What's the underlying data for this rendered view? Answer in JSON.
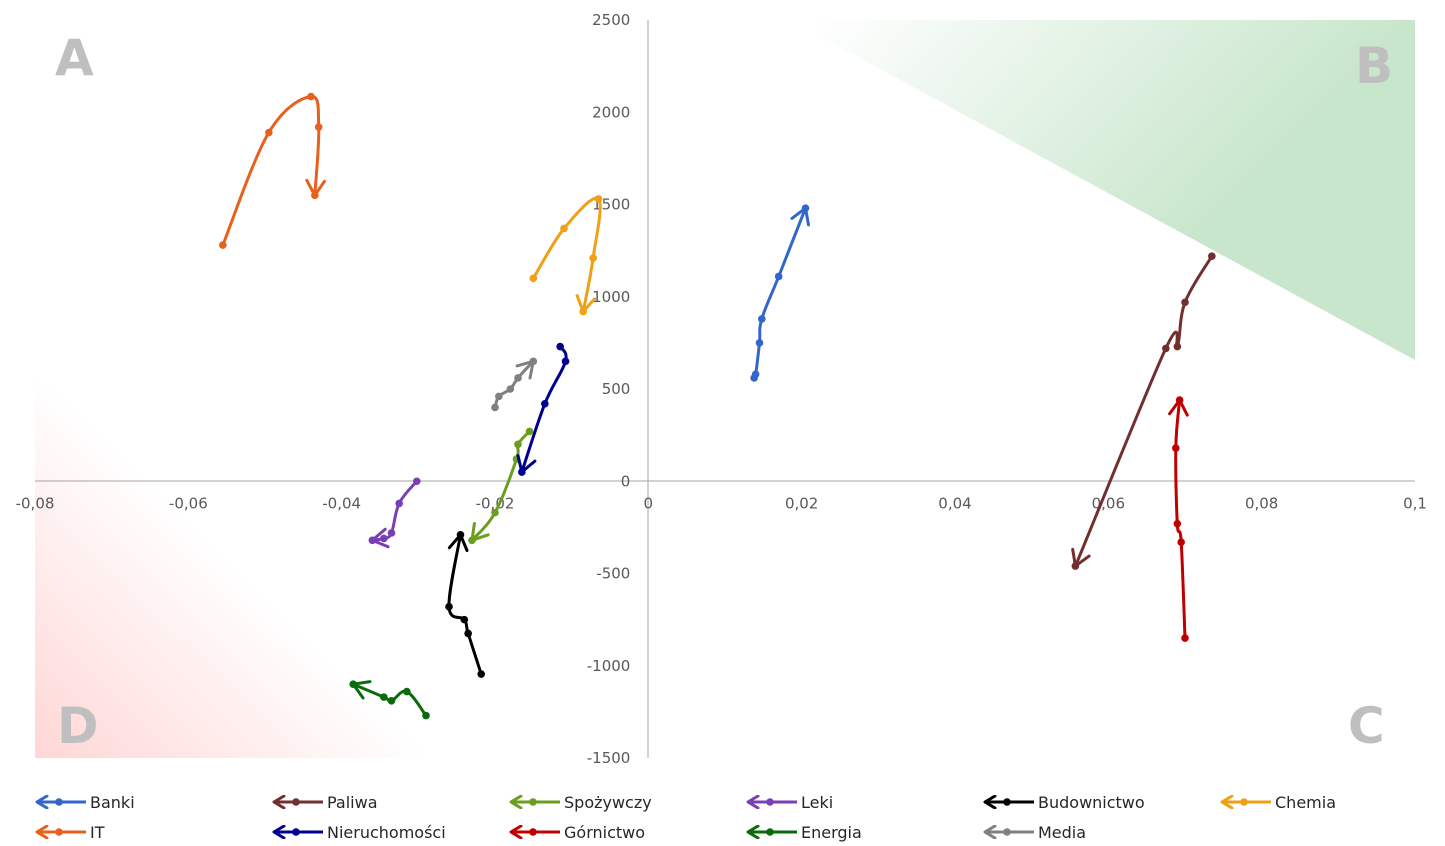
{
  "chart_data": {
    "type": "line",
    "xlim": [
      -0.08,
      0.1
    ],
    "ylim": [
      -1500,
      2500
    ],
    "x_ticks": [
      -0.08,
      -0.06,
      -0.04,
      -0.02,
      0,
      0.02,
      0.04,
      0.06,
      0.08,
      0.1
    ],
    "x_tick_labels": [
      "-0,08",
      "-0,06",
      "-0,04",
      "-0,02",
      "0",
      "0,02",
      "0,04",
      "0,06",
      "0,08",
      "0,1"
    ],
    "y_ticks": [
      -1500,
      -1000,
      -500,
      0,
      500,
      1000,
      1500,
      2000,
      2500
    ],
    "y_tick_labels": [
      "-1500",
      "-1000",
      "-500",
      "0",
      "500",
      "1000",
      "1500",
      "2000",
      "2500"
    ],
    "grid": false,
    "legend_position": "bottom",
    "quadrant_labels": {
      "A": "A",
      "B": "B",
      "C": "C",
      "D": "D"
    },
    "quadrant_shading": {
      "top_right": "#c8e6cc",
      "bottom_left": "#ffd9d9"
    },
    "series": [
      {
        "name": "Banki",
        "color": "#3366cc",
        "arrow": true,
        "points": [
          [
            0.0138,
            560
          ],
          [
            0.014,
            580
          ],
          [
            0.0145,
            750
          ],
          [
            0.0148,
            880
          ],
          [
            0.017,
            1110
          ],
          [
            0.0205,
            1480
          ]
        ]
      },
      {
        "name": "Paliwa",
        "color": "#722f2f",
        "arrow": true,
        "points": [
          [
            0.0735,
            1220
          ],
          [
            0.07,
            970
          ],
          [
            0.069,
            730
          ],
          [
            0.0675,
            720
          ],
          [
            0.0557,
            -460
          ]
        ]
      },
      {
        "name": "Spożywczy",
        "color": "#6b9e1f",
        "arrow": true,
        "points": [
          [
            -0.0155,
            270
          ],
          [
            -0.017,
            200
          ],
          [
            -0.0172,
            120
          ],
          [
            -0.02,
            -170
          ],
          [
            -0.023,
            -320
          ]
        ]
      },
      {
        "name": "Leki",
        "color": "#7b3fb5",
        "arrow": true,
        "points": [
          [
            -0.0302,
            0
          ],
          [
            -0.0325,
            -120
          ],
          [
            -0.0335,
            -280
          ],
          [
            -0.0345,
            -310
          ],
          [
            -0.036,
            -320
          ]
        ]
      },
      {
        "name": "Budownictwo",
        "color": "#000000",
        "arrow": true,
        "points": [
          [
            -0.0218,
            -1045
          ],
          [
            -0.0235,
            -825
          ],
          [
            -0.024,
            -750
          ],
          [
            -0.026,
            -680
          ],
          [
            -0.0245,
            -290
          ]
        ]
      },
      {
        "name": "Chemia",
        "color": "#f0a014",
        "arrow": true,
        "points": [
          [
            -0.015,
            1100
          ],
          [
            -0.011,
            1370
          ],
          [
            -0.0065,
            1530
          ],
          [
            -0.0072,
            1210
          ],
          [
            -0.0085,
            920
          ]
        ]
      },
      {
        "name": "IT",
        "color": "#e8601c",
        "arrow": true,
        "points": [
          [
            -0.0555,
            1280
          ],
          [
            -0.0495,
            1890
          ],
          [
            -0.044,
            2085
          ],
          [
            -0.043,
            1920
          ],
          [
            -0.0435,
            1550
          ]
        ]
      },
      {
        "name": "Nieruchomości",
        "color": "#000090",
        "arrow": true,
        "points": [
          [
            -0.0115,
            730
          ],
          [
            -0.0108,
            650
          ],
          [
            -0.0135,
            420
          ],
          [
            -0.0165,
            50
          ]
        ]
      },
      {
        "name": "Górnictwo",
        "color": "#c00000",
        "arrow": true,
        "points": [
          [
            0.07,
            -850
          ],
          [
            0.0695,
            -330
          ],
          [
            0.069,
            -230
          ],
          [
            0.0688,
            180
          ],
          [
            0.0693,
            440
          ]
        ]
      },
      {
        "name": "Energia",
        "color": "#0a6b0a",
        "arrow": true,
        "points": [
          [
            -0.029,
            -1270
          ],
          [
            -0.0315,
            -1140
          ],
          [
            -0.0335,
            -1190
          ],
          [
            -0.0345,
            -1170
          ],
          [
            -0.0385,
            -1100
          ]
        ]
      },
      {
        "name": "Media",
        "color": "#808080",
        "arrow": true,
        "points": [
          [
            -0.02,
            400
          ],
          [
            -0.0195,
            460
          ],
          [
            -0.018,
            500
          ],
          [
            -0.017,
            560
          ],
          [
            -0.015,
            650
          ]
        ]
      }
    ]
  },
  "legend": [
    {
      "name": "Banki",
      "color": "#3366cc"
    },
    {
      "name": "Paliwa",
      "color": "#722f2f"
    },
    {
      "name": "Spożywczy",
      "color": "#6b9e1f"
    },
    {
      "name": "Leki",
      "color": "#7b3fb5"
    },
    {
      "name": "Budownictwo",
      "color": "#000000"
    },
    {
      "name": "Chemia",
      "color": "#f0a014"
    },
    {
      "name": "IT",
      "color": "#e8601c"
    },
    {
      "name": "Nieruchomości",
      "color": "#000090"
    },
    {
      "name": "Górnictwo",
      "color": "#c00000"
    },
    {
      "name": "Energia",
      "color": "#0a6b0a"
    },
    {
      "name": "Media",
      "color": "#808080"
    }
  ]
}
